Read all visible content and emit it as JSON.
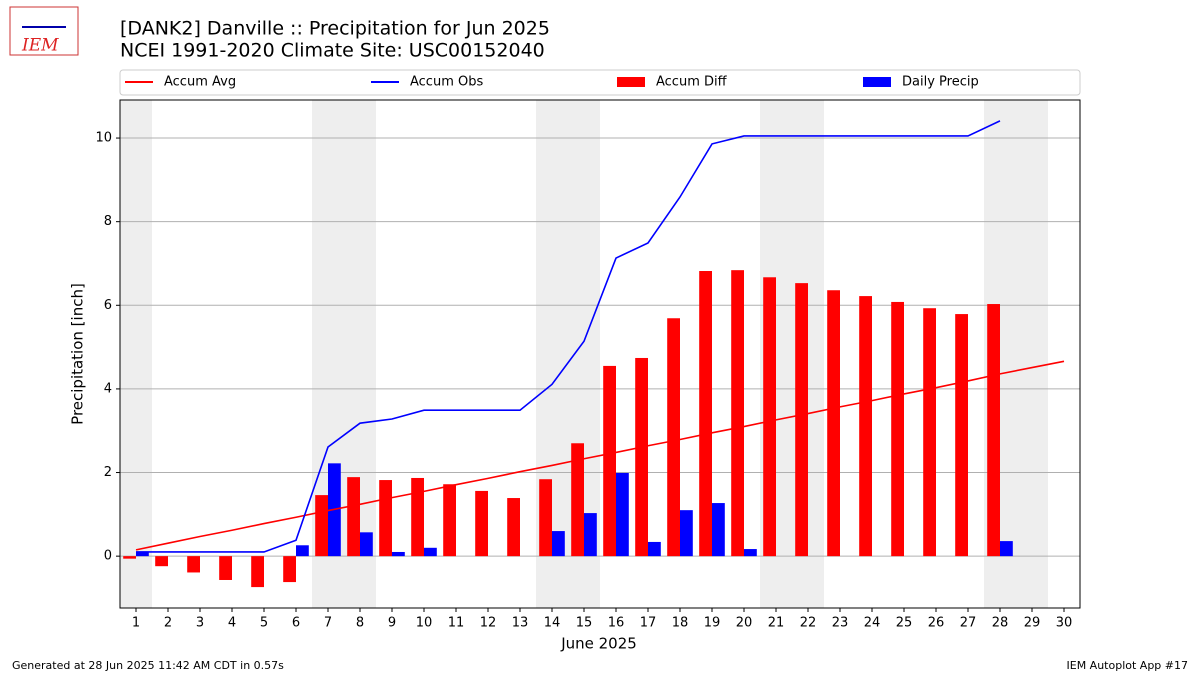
{
  "chart_data": {
    "type": "bar",
    "logo_text": "IEM",
    "title": "[DANK2] Danville :: Precipitation for Jun 2025",
    "subtitle": "NCEI 1991-2020 Climate Site: USC00152040",
    "x_label": "June 2025",
    "y_label": "Precipitation [inch]",
    "x": [
      1,
      2,
      3,
      4,
      5,
      6,
      7,
      8,
      9,
      10,
      11,
      12,
      13,
      14,
      15,
      16,
      17,
      18,
      19,
      20,
      21,
      22,
      23,
      24,
      25,
      26,
      27,
      28,
      29,
      30
    ],
    "xlim": [
      0.5,
      30.5
    ],
    "xticks": [
      1,
      2,
      3,
      4,
      5,
      6,
      7,
      8,
      9,
      10,
      11,
      12,
      13,
      14,
      15,
      16,
      17,
      18,
      19,
      20,
      21,
      22,
      23,
      24,
      25,
      26,
      27,
      28,
      29,
      30
    ],
    "ylim": [
      -1.24,
      10.91
    ],
    "yticks": [
      0,
      2,
      4,
      6,
      8,
      10
    ],
    "grid": true,
    "shaded_days": [
      1,
      7,
      8,
      14,
      15,
      21,
      22,
      28,
      29
    ],
    "series": [
      {
        "name": "Accum Avg",
        "type": "line",
        "color": "#ff0000",
        "values": [
          0.15,
          0.31,
          0.47,
          0.62,
          0.78,
          0.93,
          1.09,
          1.24,
          1.4,
          1.55,
          1.71,
          1.86,
          2.02,
          2.17,
          2.33,
          2.48,
          2.64,
          2.79,
          2.95,
          3.1,
          3.26,
          3.41,
          3.57,
          3.72,
          3.88,
          4.03,
          4.19,
          4.36,
          4.51,
          4.66
        ]
      },
      {
        "name": "Accum Obs",
        "type": "line",
        "color": "#0000ff",
        "values": [
          0.1,
          0.1,
          0.1,
          0.1,
          0.1,
          0.38,
          2.61,
          3.18,
          3.28,
          3.49,
          3.49,
          3.49,
          3.49,
          4.11,
          5.14,
          7.13,
          7.49,
          8.59,
          9.86,
          10.05,
          10.05,
          10.05,
          10.05,
          10.05,
          10.05,
          10.05,
          10.05,
          10.41,
          null,
          null
        ]
      },
      {
        "name": "Accum Diff",
        "type": "bar",
        "color": "#ff0000",
        "values": [
          -0.06,
          -0.24,
          -0.39,
          -0.57,
          -0.74,
          -0.62,
          1.46,
          1.89,
          1.82,
          1.87,
          1.72,
          1.56,
          1.39,
          1.84,
          2.7,
          4.55,
          4.74,
          5.69,
          6.82,
          6.84,
          6.67,
          6.53,
          6.36,
          6.22,
          6.08,
          5.93,
          5.79,
          6.03,
          null,
          null
        ]
      },
      {
        "name": "Daily Precip",
        "type": "bar",
        "color": "#0000ff",
        "values": [
          0.1,
          0,
          0,
          0,
          0,
          0.26,
          2.22,
          0.57,
          0.1,
          0.2,
          0,
          0,
          0,
          0.6,
          1.03,
          1.99,
          0.34,
          1.1,
          1.27,
          0.17,
          0,
          0,
          0,
          0,
          0,
          0,
          0,
          0.36,
          null,
          null
        ]
      }
    ],
    "footer_left": "Generated at 28 Jun 2025 11:42 AM CDT in 0.57s",
    "footer_right": "IEM Autoplot App #17"
  }
}
